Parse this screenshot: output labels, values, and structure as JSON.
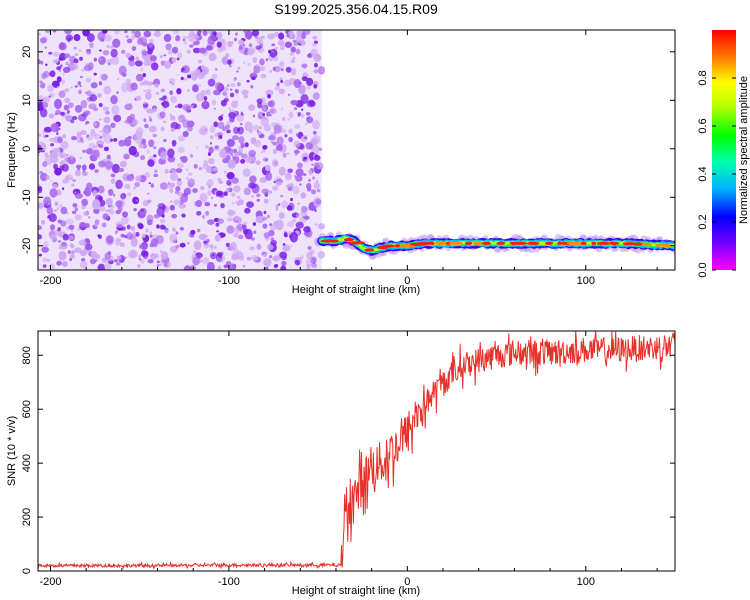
{
  "title": "S199.2025.356.04.15.R09",
  "colors": {
    "noise_dark": "#7a1fe6",
    "noise_light": "#cfa8f2",
    "snr_line": "#e8302a",
    "axis": "#000000"
  },
  "chart_data": [
    {
      "type": "heatmap",
      "name": "spectrogram",
      "xlabel": "Height of straight line (km)",
      "ylabel": "Frequency (Hz)",
      "xlim": [
        -207,
        150
      ],
      "ylim": [
        -25,
        24.5
      ],
      "xticks": [
        -200,
        -100,
        0,
        100
      ],
      "xtick_labels": [
        "-200",
        "-100",
        "0",
        "100"
      ],
      "yticks": [
        -20,
        -10,
        0,
        10,
        20
      ],
      "ytick_labels": [
        "-20",
        "-10",
        "0",
        "10",
        "20"
      ],
      "noise_region_x": [
        -207,
        -48
      ],
      "signal_track": {
        "x": [
          -48,
          -40,
          -35,
          -30,
          -25,
          -20,
          -15,
          -10,
          -5,
          0,
          10,
          20,
          40,
          60,
          80,
          100,
          120,
          150
        ],
        "freq": [
          -19,
          -19,
          -18.5,
          -19,
          -20.5,
          -21,
          -20.5,
          -20,
          -20,
          -20,
          -19.5,
          -19.5,
          -19.5,
          -19.5,
          -19.5,
          -19.5,
          -19.5,
          -20
        ]
      },
      "colorbar": {
        "label": "Normalized spectral amplitude",
        "range": [
          0,
          1
        ],
        "ticks": [
          0.0,
          0.2,
          0.4,
          0.6,
          0.8
        ],
        "tick_labels": [
          "0.0",
          "0.2",
          "0.4",
          "0.6",
          "0.8"
        ]
      }
    },
    {
      "type": "line",
      "name": "snr",
      "xlabel": "Height of straight line (km)",
      "ylabel": "SNR (10 * v/v)",
      "xlim": [
        -207,
        150
      ],
      "ylim": [
        0,
        890
      ],
      "xticks": [
        -200,
        -100,
        0,
        100
      ],
      "xtick_labels": [
        "-200",
        "-100",
        "0",
        "100"
      ],
      "yticks": [
        0,
        200,
        400,
        600,
        800
      ],
      "ytick_labels": [
        "0",
        "200",
        "400",
        "600",
        "800"
      ],
      "series": [
        {
          "name": "SNR",
          "x": [
            -207,
            -150,
            -100,
            -50,
            -37,
            -35,
            -30,
            -25,
            -20,
            -15,
            -10,
            -5,
            0,
            5,
            10,
            15,
            20,
            25,
            30,
            40,
            50,
            60,
            80,
            100,
            120,
            140,
            150
          ],
          "y": [
            20,
            20,
            22,
            22,
            22,
            230,
            270,
            330,
            380,
            400,
            430,
            470,
            510,
            580,
            620,
            660,
            700,
            730,
            760,
            780,
            800,
            810,
            810,
            820,
            820,
            830,
            840
          ]
        }
      ]
    }
  ]
}
